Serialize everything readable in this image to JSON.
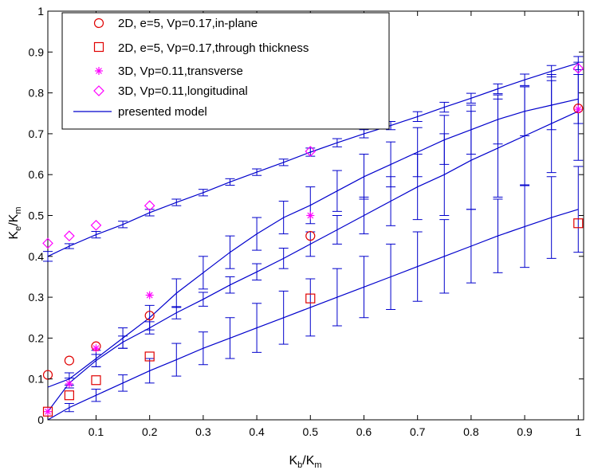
{
  "chart_data": {
    "type": "line",
    "title": "",
    "xlabel": {
      "main": "K",
      "sub": "b",
      "tail": "/K",
      "sub2": "m"
    },
    "ylabel": {
      "main": "K",
      "sub": "e",
      "tail": "/K",
      "sub2": "m"
    },
    "xlim": [
      0.01,
      1.01
    ],
    "ylim": [
      0,
      1
    ],
    "xticks": [
      0.1,
      0.2,
      0.3,
      0.4,
      0.5,
      0.6,
      0.7,
      0.8,
      0.9,
      1
    ],
    "xtick_labels": [
      "0.1",
      "0.2",
      "0.3",
      "0.4",
      "0.5",
      "0.6",
      "0.7",
      "0.8",
      "0.9",
      "1"
    ],
    "yticks": [
      0,
      0.1,
      0.2,
      0.3,
      0.4,
      0.5,
      0.6,
      0.7,
      0.8,
      0.9,
      1
    ],
    "ytick_labels": [
      "0",
      "0.1",
      "0.2",
      "0.3",
      "0.4",
      "0.5",
      "0.6",
      "0.7",
      "0.8",
      "0.9",
      "1"
    ],
    "grid": false,
    "legend_position": "top-left",
    "colors": {
      "model": "#0000cc",
      "marker_2d": "#e00000",
      "marker_3d": "#ff00ff"
    },
    "series": [
      {
        "name": "2D, e=5, Vp=0.17,in-plane",
        "marker": "circle",
        "color": "#e00000",
        "x": [
          0.01,
          0.05,
          0.1,
          0.2,
          0.5,
          1.0
        ],
        "y": [
          0.11,
          0.145,
          0.18,
          0.255,
          0.45,
          0.762
        ]
      },
      {
        "name": "2D, e=5, Vp=0.17,through thickness",
        "marker": "square",
        "color": "#e00000",
        "x": [
          0.01,
          0.05,
          0.1,
          0.2,
          0.5,
          1.0
        ],
        "y": [
          0.02,
          0.06,
          0.097,
          0.155,
          0.297,
          0.481
        ]
      },
      {
        "name": "3D, Vp=0.11,transverse",
        "marker": "asterisk",
        "color": "#ff00ff",
        "x": [
          0.01,
          0.05,
          0.1,
          0.2,
          0.5,
          1.0
        ],
        "y": [
          0.02,
          0.088,
          0.175,
          0.305,
          0.5,
          0.76
        ]
      },
      {
        "name": "3D, Vp=0.11,longitudinal",
        "marker": "diamond",
        "color": "#ff00ff",
        "x": [
          0.01,
          0.05,
          0.1,
          0.2,
          0.5,
          1.0
        ],
        "y": [
          0.432,
          0.45,
          0.476,
          0.524,
          0.657,
          0.86
        ]
      },
      {
        "name": "presented model",
        "marker": "none",
        "color": "#0000cc",
        "curves": [
          {
            "x": [
              0.01,
              0.05,
              0.1,
              0.15,
              0.2,
              0.25,
              0.3,
              0.35,
              0.4,
              0.45,
              0.5,
              0.55,
              0.6,
              0.65,
              0.7,
              0.75,
              0.8,
              0.85,
              0.9,
              0.95,
              1.0
            ],
            "y": [
              0.4,
              0.425,
              0.453,
              0.478,
              0.507,
              0.532,
              0.556,
              0.582,
              0.606,
              0.63,
              0.655,
              0.678,
              0.7,
              0.72,
              0.742,
              0.765,
              0.787,
              0.81,
              0.832,
              0.853,
              0.873
            ],
            "err": [
              0.012,
              0.006,
              0.008,
              0.008,
              0.008,
              0.008,
              0.008,
              0.008,
              0.008,
              0.008,
              0.01,
              0.01,
              0.01,
              0.01,
              0.012,
              0.012,
              0.012,
              0.012,
              0.014,
              0.014,
              0.016
            ]
          },
          {
            "x": [
              0.01,
              0.05,
              0.1,
              0.15,
              0.2,
              0.25,
              0.3,
              0.35,
              0.4,
              0.45,
              0.5,
              0.55,
              0.6,
              0.65,
              0.7,
              0.75,
              0.8,
              0.85,
              0.9,
              0.95,
              1.0
            ],
            "y": [
              0.08,
              0.1,
              0.15,
              0.2,
              0.25,
              0.31,
              0.36,
              0.41,
              0.455,
              0.495,
              0.525,
              0.56,
              0.595,
              0.625,
              0.655,
              0.685,
              0.71,
              0.735,
              0.755,
              0.77,
              0.785
            ],
            "err": [
              0.0,
              0.015,
              0.02,
              0.025,
              0.03,
              0.035,
              0.04,
              0.04,
              0.04,
              0.04,
              0.045,
              0.05,
              0.055,
              0.055,
              0.06,
              0.06,
              0.06,
              0.06,
              0.06,
              0.06,
              0.06
            ]
          },
          {
            "x": [
              0.01,
              0.05,
              0.1,
              0.15,
              0.2,
              0.25,
              0.3,
              0.35,
              0.4,
              0.45,
              0.5,
              0.55,
              0.6,
              0.65,
              0.7,
              0.75,
              0.8,
              0.85,
              0.9,
              0.95,
              1.0
            ],
            "y": [
              0.02,
              0.09,
              0.145,
              0.19,
              0.225,
              0.262,
              0.295,
              0.33,
              0.362,
              0.395,
              0.43,
              0.465,
              0.5,
              0.535,
              0.57,
              0.6,
              0.635,
              0.665,
              0.695,
              0.725,
              0.755
            ],
            "err": [
              0.0,
              0.012,
              0.015,
              0.015,
              0.015,
              0.015,
              0.017,
              0.02,
              0.02,
              0.025,
              0.03,
              0.035,
              0.045,
              0.06,
              0.08,
              0.1,
              0.12,
              0.12,
              0.12,
              0.12,
              0.12
            ]
          },
          {
            "x": [
              0.01,
              0.05,
              0.1,
              0.15,
              0.2,
              0.25,
              0.3,
              0.35,
              0.4,
              0.45,
              0.5,
              0.55,
              0.6,
              0.65,
              0.7,
              0.75,
              0.8,
              0.85,
              0.9,
              0.95,
              1.0
            ],
            "y": [
              0.0,
              0.03,
              0.06,
              0.09,
              0.12,
              0.147,
              0.175,
              0.2,
              0.225,
              0.25,
              0.275,
              0.3,
              0.325,
              0.35,
              0.375,
              0.4,
              0.425,
              0.45,
              0.473,
              0.495,
              0.515
            ],
            "err": [
              0.0,
              0.01,
              0.015,
              0.02,
              0.03,
              0.04,
              0.04,
              0.05,
              0.06,
              0.065,
              0.07,
              0.07,
              0.075,
              0.08,
              0.085,
              0.09,
              0.09,
              0.09,
              0.1,
              0.1,
              0.105
            ]
          }
        ]
      }
    ]
  }
}
